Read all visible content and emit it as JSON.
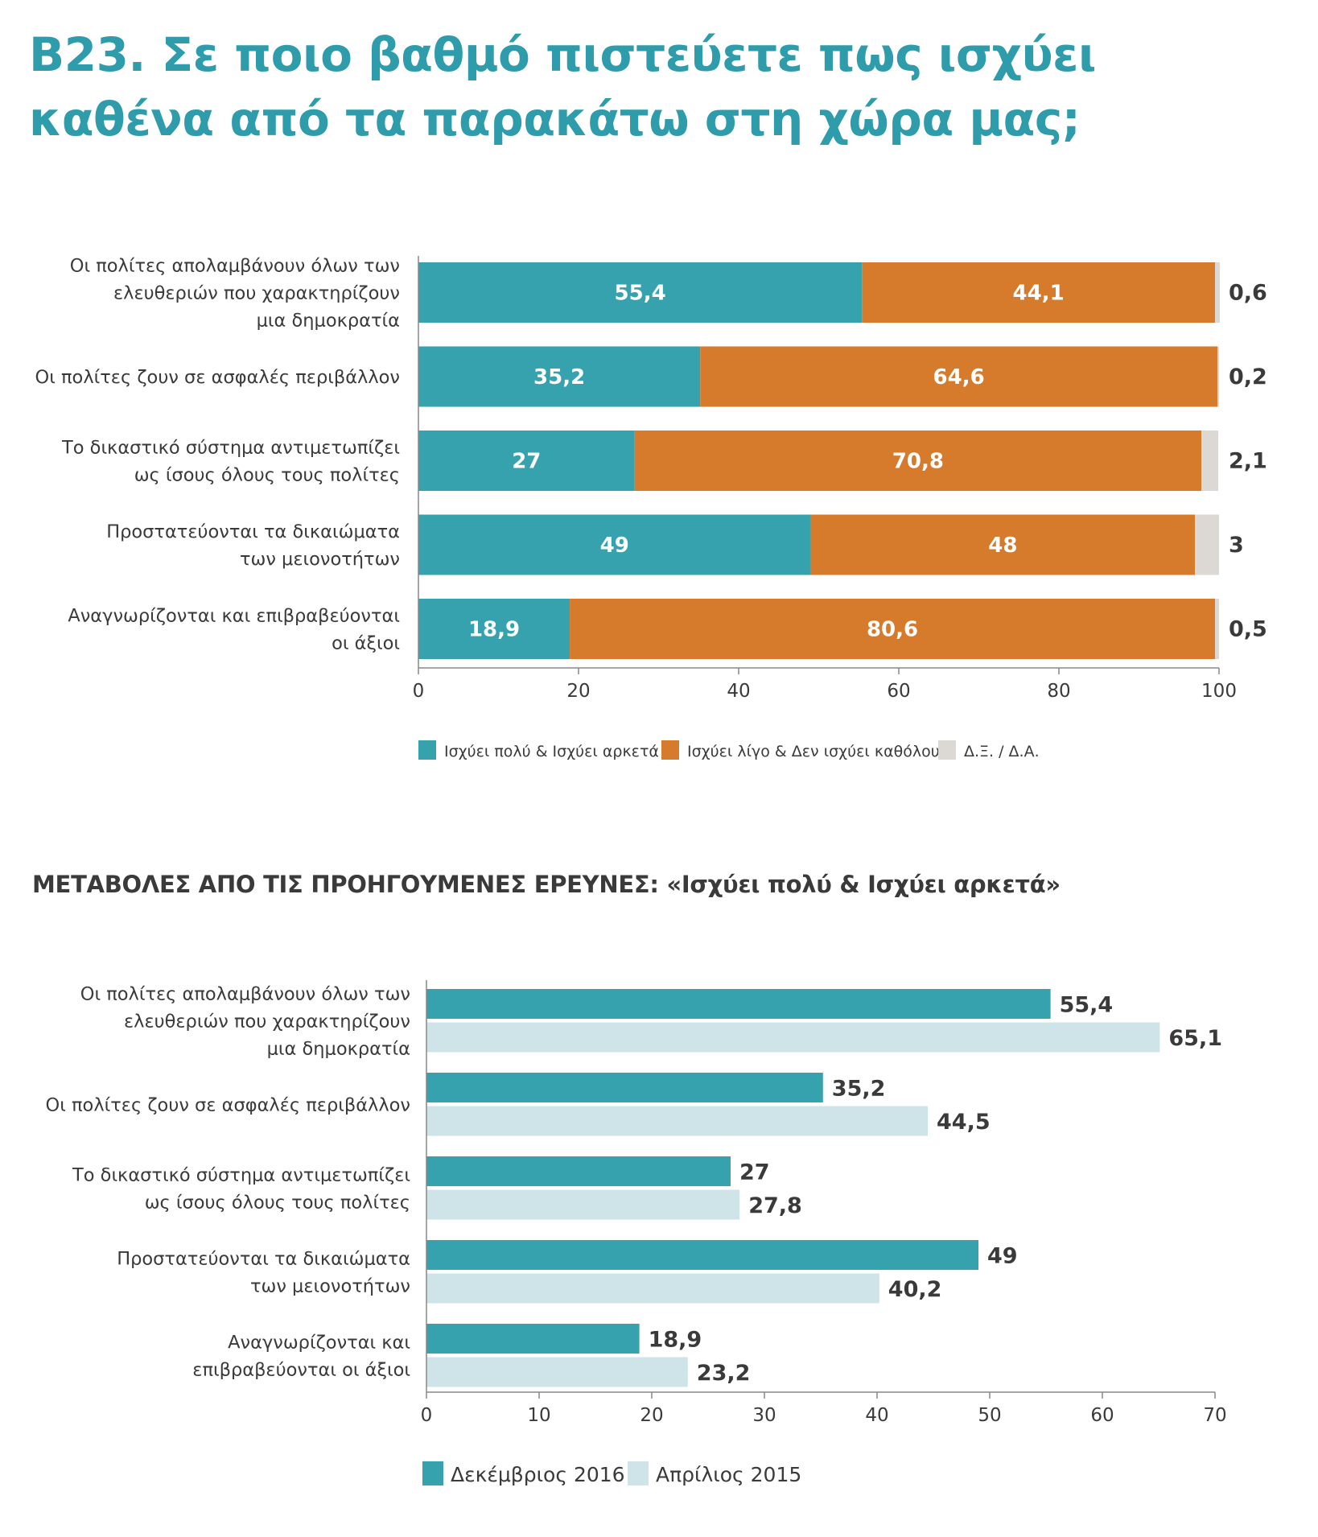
{
  "title": {
    "line1": "B23. Σε ποιο βαθμό πιστεύετε πως ισχύει",
    "line2": "καθένα από τα παρακάτω στη χώρα μας;"
  },
  "section_title": "ΜΕΤΑΒΟΛΕΣ ΑΠΟ ΤΙΣ ΠΡΟΗΓΟΥΜΕΝΕΣ ΕΡΕΥΝΕΣ: «Ισχύει πολύ & Ισχύει αρκετά»",
  "colors": {
    "teal": "#35a2ad",
    "orange": "#d67a2b",
    "grey": "#dcd8d4",
    "light_teal": "#cfe4e8",
    "title": "#2e9cab"
  },
  "chart_data": [
    {
      "type": "bar",
      "stacked": true,
      "orientation": "horizontal",
      "categories": [
        [
          "Οι πολίτες απολαμβάνουν όλων των",
          "ελευθεριών που χαρακτηρίζουν",
          "μια δημοκρατία"
        ],
        [
          "Οι πολίτες ζουν σε ασφαλές περιβάλλον"
        ],
        [
          "Το δικαστικό σύστημα αντιμετωπίζει",
          "ως ίσους όλους τους πολίτες"
        ],
        [
          "Προστατεύονται τα δικαιώματα",
          "των μειονοτήτων"
        ],
        [
          "Αναγνωρίζονται και επιβραβεύονται",
          "οι άξιοι"
        ]
      ],
      "series": [
        {
          "name": "Ισχύει πολύ & Ισχύει αρκετά",
          "values": [
            55.4,
            35.2,
            27,
            49,
            18.9
          ],
          "labels": [
            "55,4",
            "35,2",
            "27",
            "49",
            "18,9"
          ]
        },
        {
          "name": "Ισχύει λίγο & Δεν ισχύει καθόλου",
          "values": [
            44.1,
            64.6,
            70.8,
            48,
            80.6
          ],
          "labels": [
            "44,1",
            "64,6",
            "70,8",
            "48",
            "80,6"
          ]
        },
        {
          "name": "Δ.Ξ. / Δ.Α.",
          "values": [
            0.6,
            0.2,
            2.1,
            3,
            0.5
          ],
          "labels": [
            "0,6",
            "0,2",
            "2,1",
            "3",
            "0,5"
          ]
        }
      ],
      "xlim": [
        0,
        100
      ],
      "xticks": [
        "0",
        "20",
        "40",
        "60",
        "80",
        "100"
      ],
      "legend_position": "bottom"
    },
    {
      "type": "bar",
      "orientation": "horizontal",
      "categories": [
        [
          "Οι πολίτες απολαμβάνουν όλων των",
          "ελευθεριών που χαρακτηρίζουν",
          "μια δημοκρατία"
        ],
        [
          "Οι πολίτες ζουν σε ασφαλές περιβάλλον"
        ],
        [
          "Το δικαστικό σύστημα αντιμετωπίζει",
          "ως ίσους όλους τους πολίτες"
        ],
        [
          "Προστατεύονται τα δικαιώματα",
          "των μειονοτήτων"
        ],
        [
          "Αναγνωρίζονται και",
          "επιβραβεύονται οι άξιοι"
        ]
      ],
      "series": [
        {
          "name": "Δεκέμβριος 2016",
          "values": [
            55.4,
            35.2,
            27,
            49,
            18.9
          ],
          "labels": [
            "55,4",
            "35,2",
            "27",
            "49",
            "18,9"
          ]
        },
        {
          "name": "Απρίλιος 2015",
          "values": [
            65.1,
            44.5,
            27.8,
            40.2,
            23.2
          ],
          "labels": [
            "65,1",
            "44,5",
            "27,8",
            "40,2",
            "23,2"
          ]
        }
      ],
      "xlim": [
        0,
        70
      ],
      "xticks": [
        "0",
        "10",
        "20",
        "30",
        "40",
        "50",
        "60",
        "70"
      ],
      "legend_position": "bottom"
    }
  ]
}
